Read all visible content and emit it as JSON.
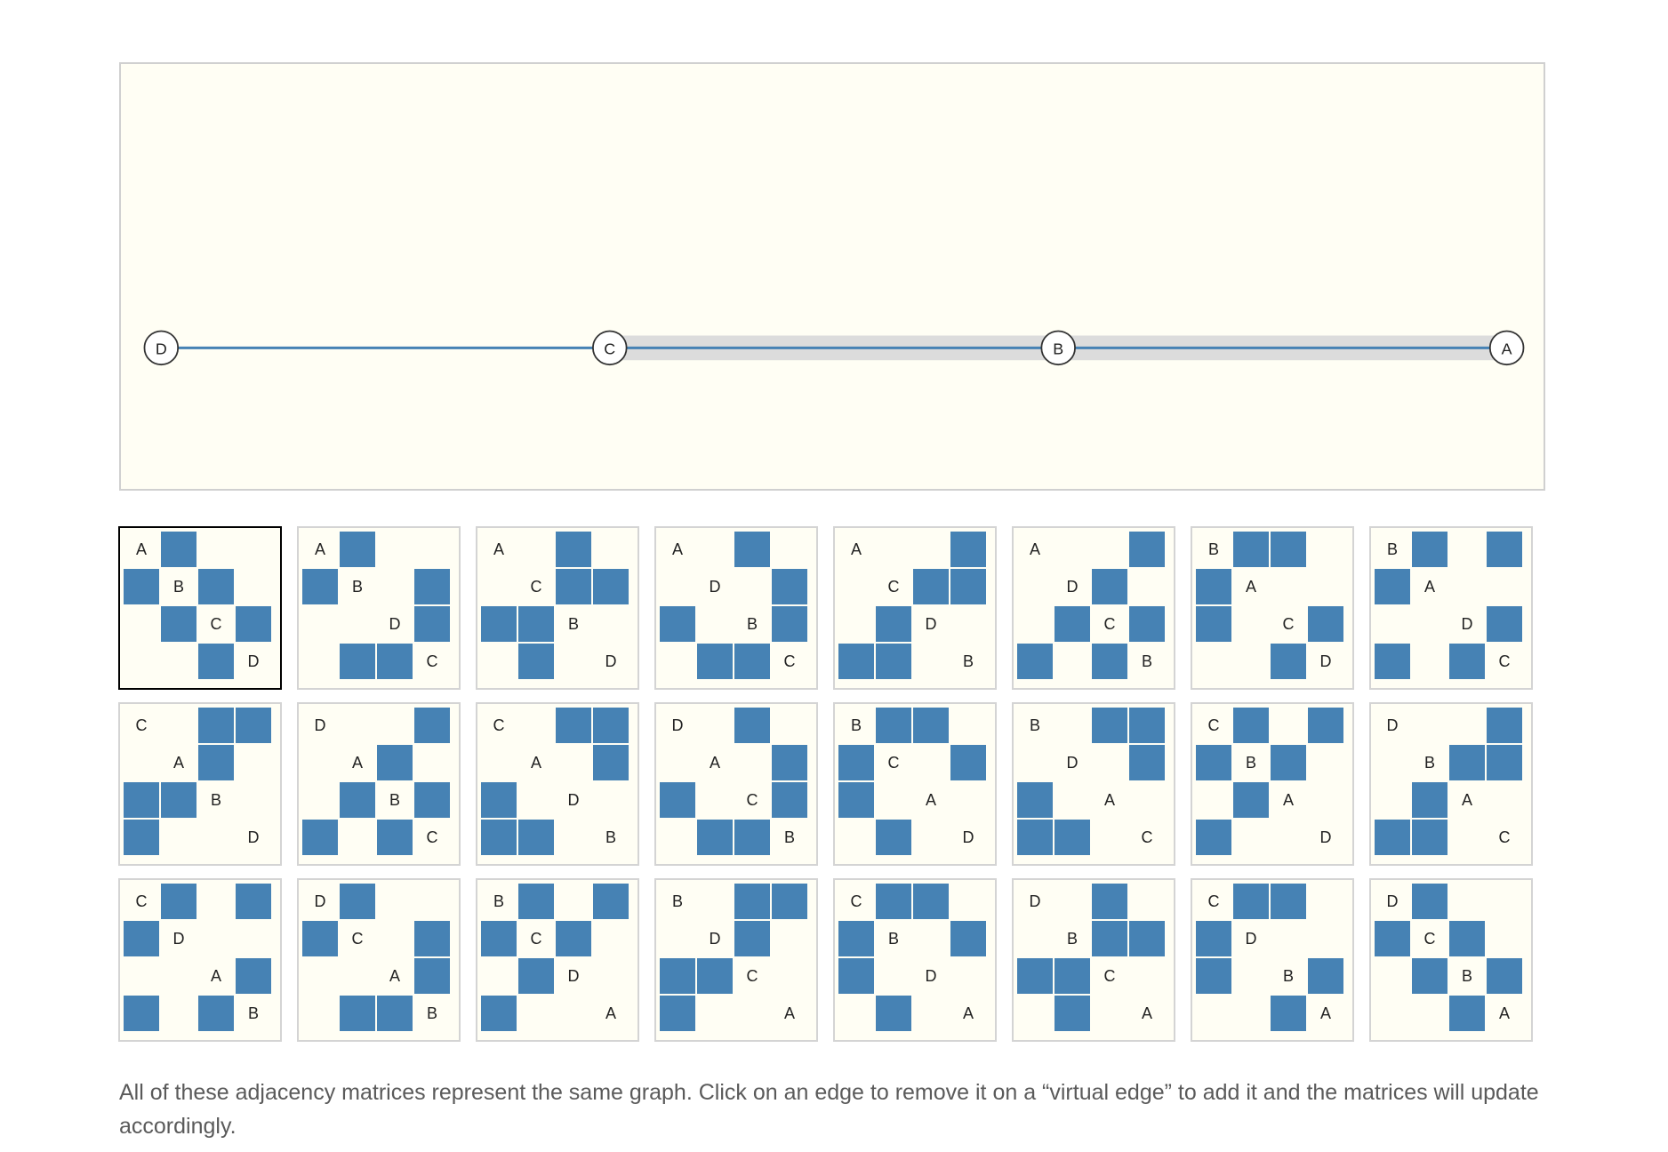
{
  "graph": {
    "nodes": [
      "D",
      "C",
      "B",
      "A"
    ],
    "edges": [
      [
        "D",
        "C"
      ],
      [
        "C",
        "B"
      ],
      [
        "B",
        "A"
      ]
    ],
    "virtual_edges": [
      [
        "C",
        "B"
      ],
      [
        "B",
        "A"
      ]
    ],
    "colors": {
      "edge": "#4682b4",
      "virtual_edge": "#dcdcdc",
      "node_highlight": "#6b1a1a"
    }
  },
  "matrices": [
    {
      "order": [
        "A",
        "B",
        "C",
        "D"
      ],
      "selected": true
    },
    {
      "order": [
        "A",
        "B",
        "D",
        "C"
      ]
    },
    {
      "order": [
        "A",
        "C",
        "B",
        "D"
      ]
    },
    {
      "order": [
        "A",
        "D",
        "B",
        "C"
      ]
    },
    {
      "order": [
        "A",
        "C",
        "D",
        "B"
      ]
    },
    {
      "order": [
        "A",
        "D",
        "C",
        "B"
      ]
    },
    {
      "order": [
        "B",
        "A",
        "C",
        "D"
      ]
    },
    {
      "order": [
        "B",
        "A",
        "D",
        "C"
      ]
    },
    {
      "order": [
        "C",
        "A",
        "B",
        "D"
      ]
    },
    {
      "order": [
        "D",
        "A",
        "B",
        "C"
      ]
    },
    {
      "order": [
        "C",
        "A",
        "D",
        "B"
      ]
    },
    {
      "order": [
        "D",
        "A",
        "C",
        "B"
      ]
    },
    {
      "order": [
        "B",
        "C",
        "A",
        "D"
      ]
    },
    {
      "order": [
        "B",
        "D",
        "A",
        "C"
      ]
    },
    {
      "order": [
        "C",
        "B",
        "A",
        "D"
      ]
    },
    {
      "order": [
        "D",
        "B",
        "A",
        "C"
      ]
    },
    {
      "order": [
        "C",
        "D",
        "A",
        "B"
      ]
    },
    {
      "order": [
        "D",
        "C",
        "A",
        "B"
      ]
    },
    {
      "order": [
        "B",
        "C",
        "D",
        "A"
      ]
    },
    {
      "order": [
        "B",
        "D",
        "C",
        "A"
      ]
    },
    {
      "order": [
        "C",
        "B",
        "D",
        "A"
      ]
    },
    {
      "order": [
        "D",
        "B",
        "C",
        "A"
      ]
    },
    {
      "order": [
        "C",
        "D",
        "B",
        "A"
      ]
    },
    {
      "order": [
        "D",
        "C",
        "B",
        "A"
      ]
    }
  ],
  "matrix_colors": {
    "filled": "#4682b4",
    "virtual": "#a9a9a9"
  },
  "caption": "All of these adjacency matrices represent the same graph. Click on an edge to remove it on a “virtual edge” to add it and the matrices will update accordingly."
}
